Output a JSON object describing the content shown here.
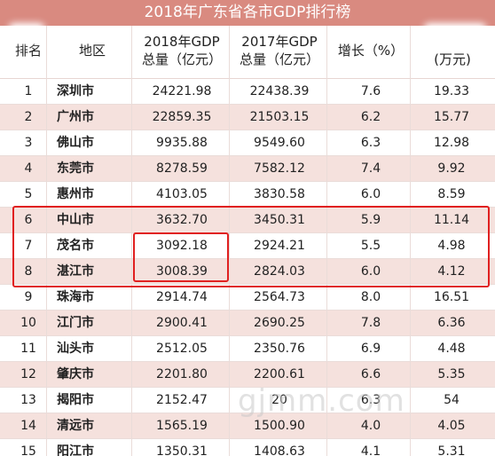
{
  "title": "2018年广东省各市GDP排行榜",
  "headers": {
    "rank": "排名",
    "region": "地区",
    "gdp2018_l1": "2018年GDP",
    "gdp2018_l2": "总量（亿元）",
    "gdp2017_l1": "2017年GDP",
    "gdp2017_l2": "总量（亿元）",
    "growth": "增长（%）",
    "percap_l2": "(万元)"
  },
  "rows": [
    {
      "rank": "1",
      "city": "深圳市",
      "gdp2018": "24221.98",
      "gdp2017": "22438.39",
      "growth": "7.6",
      "per_capita": "19.33"
    },
    {
      "rank": "2",
      "city": "广州市",
      "gdp2018": "22859.35",
      "gdp2017": "21503.15",
      "growth": "6.2",
      "per_capita": "15.77"
    },
    {
      "rank": "3",
      "city": "佛山市",
      "gdp2018": "9935.88",
      "gdp2017": "9549.60",
      "growth": "6.3",
      "per_capita": "12.98"
    },
    {
      "rank": "4",
      "city": "东莞市",
      "gdp2018": "8278.59",
      "gdp2017": "7582.12",
      "growth": "7.4",
      "per_capita": "9.92"
    },
    {
      "rank": "5",
      "city": "惠州市",
      "gdp2018": "4103.05",
      "gdp2017": "3830.58",
      "growth": "6.0",
      "per_capita": "8.59"
    },
    {
      "rank": "6",
      "city": "中山市",
      "gdp2018": "3632.70",
      "gdp2017": "3450.31",
      "growth": "5.9",
      "per_capita": "11.14"
    },
    {
      "rank": "7",
      "city": "茂名市",
      "gdp2018": "3092.18",
      "gdp2017": "2924.21",
      "growth": "5.5",
      "per_capita": "4.98"
    },
    {
      "rank": "8",
      "city": "湛江市",
      "gdp2018": "3008.39",
      "gdp2017": "2824.03",
      "growth": "6.0",
      "per_capita": "4.12"
    },
    {
      "rank": "9",
      "city": "珠海市",
      "gdp2018": "2914.74",
      "gdp2017": "2564.73",
      "growth": "8.0",
      "per_capita": "16.51"
    },
    {
      "rank": "10",
      "city": "江门市",
      "gdp2018": "2900.41",
      "gdp2017": "2690.25",
      "growth": "7.8",
      "per_capita": "6.36"
    },
    {
      "rank": "11",
      "city": "汕头市",
      "gdp2018": "2512.05",
      "gdp2017": "2350.76",
      "growth": "6.9",
      "per_capita": "4.48"
    },
    {
      "rank": "12",
      "city": "肇庆市",
      "gdp2018": "2201.80",
      "gdp2017": "2200.61",
      "growth": "6.6",
      "per_capita": "5.35"
    },
    {
      "rank": "13",
      "city": "揭阳市",
      "gdp2018": "2152.47",
      "gdp2017": "20",
      "growth": "6.3",
      "per_capita": "54"
    },
    {
      "rank": "14",
      "city": "清远市",
      "gdp2018": "1565.19",
      "gdp2017": "1500.90",
      "growth": "4.0",
      "per_capita": "4.05"
    },
    {
      "rank": "15",
      "city": "阳江市",
      "gdp2018": "1350.31",
      "gdp2017": "1408.63",
      "growth": "4.1",
      "per_capita": "5.31"
    }
  ],
  "watermark": "gjmm.com",
  "colors": {
    "title_bg": "#d98a80",
    "row_pink": "#f5e1dd",
    "highlight": "#e02020"
  }
}
